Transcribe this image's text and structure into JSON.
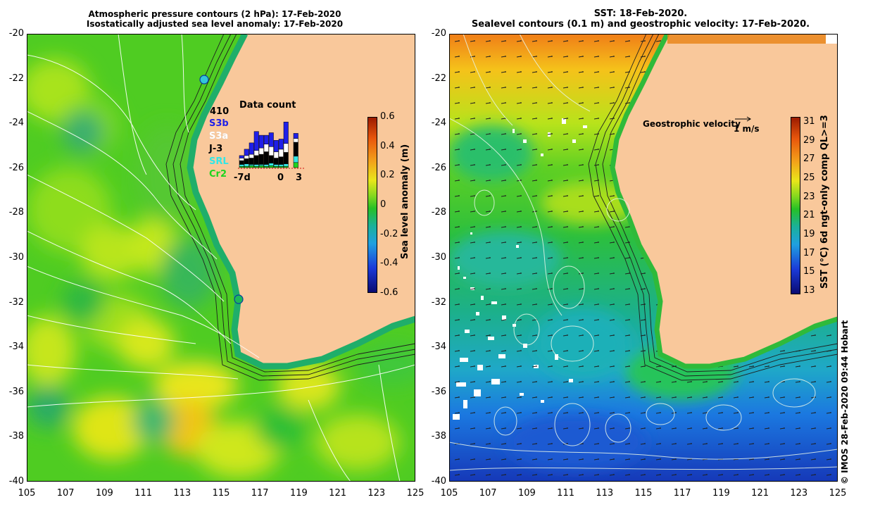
{
  "left_panel": {
    "title_line1": "Atmospheric pressure contours (2 hPa): 17-Feb-2020",
    "title_line2": "Isostatically adjusted sea level anomaly: 17-Feb-2020",
    "colorbar": {
      "label": "Sea level anomaly (m)",
      "ticks": [
        "0.6",
        "0.4",
        "0.2",
        "0",
        "-0.2",
        "-0.4",
        "-0.6"
      ],
      "range": [
        -0.6,
        0.6
      ]
    },
    "data_count": {
      "title": "Data count",
      "max_label": "410",
      "x_ticks": [
        "-7d",
        "0",
        "3"
      ],
      "legend": [
        {
          "label": "S3b",
          "color": "#1f1fe8"
        },
        {
          "label": "S3a",
          "color": "#ffffff"
        },
        {
          "label": "J-3",
          "color": "#000000"
        },
        {
          "label": "SRL",
          "color": "#33e6e6"
        },
        {
          "label": "Cr2",
          "color": "#1fd41f"
        }
      ]
    }
  },
  "right_panel": {
    "title_line1": "SST: 18-Feb-2020.",
    "title_line2": "Sealevel contours (0.1 m) and geostrophic velocity: 17-Feb-2020.",
    "velocity_label": "Geostrophic velocity",
    "velocity_scale": "1 m/s",
    "colorbar": {
      "label": "SST (°C) 6d ngt-only comp QL>=3",
      "ticks": [
        "31",
        "29",
        "27",
        "25",
        "23",
        "21",
        "19",
        "17",
        "15",
        "13"
      ],
      "range": [
        13,
        32
      ]
    }
  },
  "axes": {
    "y_ticks": [
      "-20",
      "-22",
      "-24",
      "-26",
      "-28",
      "-30",
      "-32",
      "-34",
      "-36",
      "-38",
      "-40"
    ],
    "x_ticks": [
      "105",
      "107",
      "109",
      "111",
      "113",
      "115",
      "117",
      "119",
      "121",
      "123",
      "125"
    ]
  },
  "credit": "© IMOS 28-Feb-2020 09:44 Hobart",
  "colors": {
    "land": "#f9c89b",
    "anomaly_green": "#33c81c",
    "anomaly_yellowgreen": "#8fdc1e",
    "sst_orange": "#f19a1a",
    "sst_blue": "#1773e0"
  }
}
